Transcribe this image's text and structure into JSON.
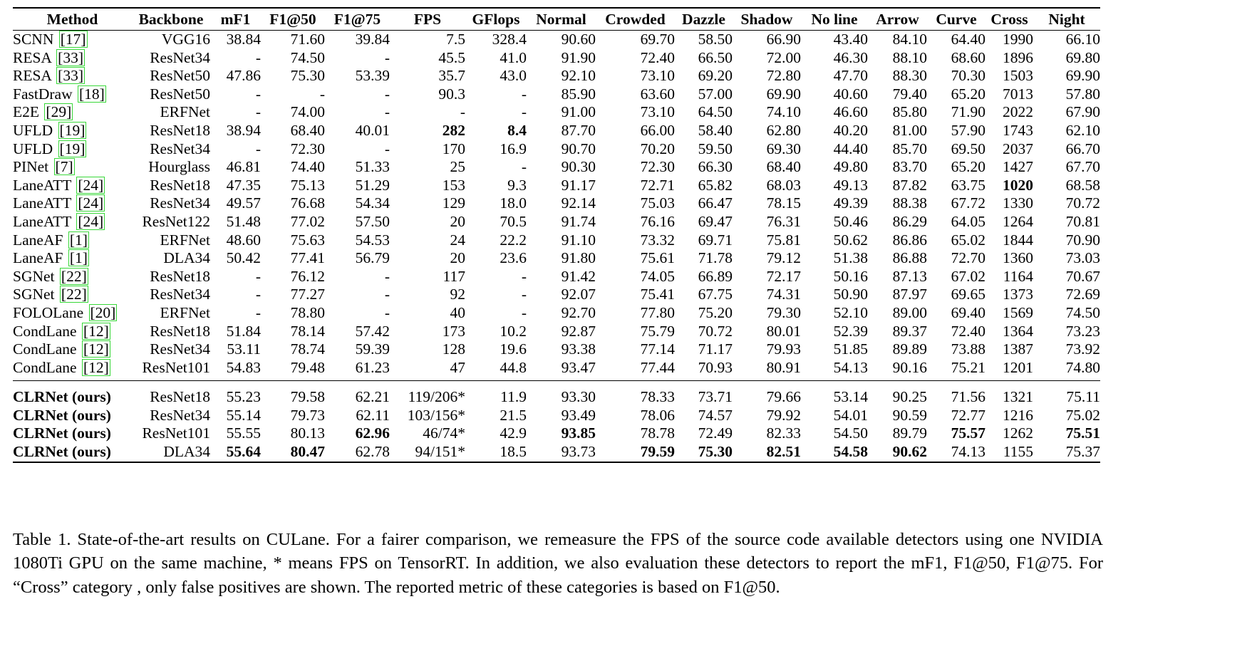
{
  "columns": [
    "Method",
    "Backbone",
    "mF1",
    "F1@50",
    "F1@75",
    "FPS",
    "GFlops",
    "Normal",
    "Crowded",
    "Dazzle",
    "Shadow",
    "No line",
    "Arrow",
    "Curve",
    "Cross",
    "Night"
  ],
  "baseline_rows": [
    {
      "method": "SCNN",
      "cite": "[17]",
      "cells": [
        "VGG16",
        "38.84",
        "71.60",
        "39.84",
        "7.5",
        "328.4",
        "90.60",
        "69.70",
        "58.50",
        "66.90",
        "43.40",
        "84.10",
        "64.40",
        "1990",
        "66.10"
      ],
      "bold": []
    },
    {
      "method": "RESA",
      "cite": "[33]",
      "cells": [
        "ResNet34",
        "-",
        "74.50",
        "-",
        "45.5",
        "41.0",
        "91.90",
        "72.40",
        "66.50",
        "72.00",
        "46.30",
        "88.10",
        "68.60",
        "1896",
        "69.80"
      ],
      "bold": []
    },
    {
      "method": "RESA",
      "cite": "[33]",
      "cells": [
        "ResNet50",
        "47.86",
        "75.30",
        "53.39",
        "35.7",
        "43.0",
        "92.10",
        "73.10",
        "69.20",
        "72.80",
        "47.70",
        "88.30",
        "70.30",
        "1503",
        "69.90"
      ],
      "bold": []
    },
    {
      "method": "FastDraw",
      "cite": "[18]",
      "cells": [
        "ResNet50",
        "-",
        "-",
        "-",
        "90.3",
        "-",
        "85.90",
        "63.60",
        "57.00",
        "69.90",
        "40.60",
        "79.40",
        "65.20",
        "7013",
        "57.80"
      ],
      "bold": []
    },
    {
      "method": "E2E",
      "cite": "[29]",
      "cells": [
        "ERFNet",
        "-",
        "74.00",
        "-",
        "-",
        "-",
        "91.00",
        "73.10",
        "64.50",
        "74.10",
        "46.60",
        "85.80",
        "71.90",
        "2022",
        "67.90"
      ],
      "bold": []
    },
    {
      "method": "UFLD",
      "cite": "[19]",
      "cells": [
        "ResNet18",
        "38.94",
        "68.40",
        "40.01",
        "282",
        "8.4",
        "87.70",
        "66.00",
        "58.40",
        "62.80",
        "40.20",
        "81.00",
        "57.90",
        "1743",
        "62.10"
      ],
      "bold": [
        4,
        5
      ]
    },
    {
      "method": "UFLD",
      "cite": "[19]",
      "cells": [
        "ResNet34",
        "-",
        "72.30",
        "-",
        "170",
        "16.9",
        "90.70",
        "70.20",
        "59.50",
        "69.30",
        "44.40",
        "85.70",
        "69.50",
        "2037",
        "66.70"
      ],
      "bold": []
    },
    {
      "method": "PINet",
      "cite": "[7]",
      "cells": [
        "Hourglass",
        "46.81",
        "74.40",
        "51.33",
        "25",
        "-",
        "90.30",
        "72.30",
        "66.30",
        "68.40",
        "49.80",
        "83.70",
        "65.20",
        "1427",
        "67.70"
      ],
      "bold": []
    },
    {
      "method": "LaneATT",
      "cite": "[24]",
      "cells": [
        "ResNet18",
        "47.35",
        "75.13",
        "51.29",
        "153",
        "9.3",
        "91.17",
        "72.71",
        "65.82",
        "68.03",
        "49.13",
        "87.82",
        "63.75",
        "1020",
        "68.58"
      ],
      "bold": [
        13
      ]
    },
    {
      "method": "LaneATT",
      "cite": "[24]",
      "cells": [
        "ResNet34",
        "49.57",
        "76.68",
        "54.34",
        "129",
        "18.0",
        "92.14",
        "75.03",
        "66.47",
        "78.15",
        "49.39",
        "88.38",
        "67.72",
        "1330",
        "70.72"
      ],
      "bold": []
    },
    {
      "method": "LaneATT",
      "cite": "[24]",
      "cells": [
        "ResNet122",
        "51.48",
        "77.02",
        "57.50",
        "20",
        "70.5",
        "91.74",
        "76.16",
        "69.47",
        "76.31",
        "50.46",
        "86.29",
        "64.05",
        "1264",
        "70.81"
      ],
      "bold": []
    },
    {
      "method": "LaneAF",
      "cite": "[1]",
      "cells": [
        "ERFNet",
        "48.60",
        "75.63",
        "54.53",
        "24",
        "22.2",
        "91.10",
        "73.32",
        "69.71",
        "75.81",
        "50.62",
        "86.86",
        "65.02",
        "1844",
        "70.90"
      ],
      "bold": []
    },
    {
      "method": "LaneAF",
      "cite": "[1]",
      "cells": [
        "DLA34",
        "50.42",
        "77.41",
        "56.79",
        "20",
        "23.6",
        "91.80",
        "75.61",
        "71.78",
        "79.12",
        "51.38",
        "86.88",
        "72.70",
        "1360",
        "73.03"
      ],
      "bold": []
    },
    {
      "method": "SGNet",
      "cite": "[22]",
      "cells": [
        "ResNet18",
        "-",
        "76.12",
        "-",
        "117",
        "-",
        "91.42",
        "74.05",
        "66.89",
        "72.17",
        "50.16",
        "87.13",
        "67.02",
        "1164",
        "70.67"
      ],
      "bold": []
    },
    {
      "method": "SGNet",
      "cite": "[22]",
      "cells": [
        "ResNet34",
        "-",
        "77.27",
        "-",
        "92",
        "-",
        "92.07",
        "75.41",
        "67.75",
        "74.31",
        "50.90",
        "87.97",
        "69.65",
        "1373",
        "72.69"
      ],
      "bold": []
    },
    {
      "method": "FOLOLane",
      "cite": "[20]",
      "cells": [
        "ERFNet",
        "-",
        "78.80",
        "-",
        "40",
        "-",
        "92.70",
        "77.80",
        "75.20",
        "79.30",
        "52.10",
        "89.00",
        "69.40",
        "1569",
        "74.50"
      ],
      "bold": []
    },
    {
      "method": "CondLane",
      "cite": "[12]",
      "cells": [
        "ResNet18",
        "51.84",
        "78.14",
        "57.42",
        "173",
        "10.2",
        "92.87",
        "75.79",
        "70.72",
        "80.01",
        "52.39",
        "89.37",
        "72.40",
        "1364",
        "73.23"
      ],
      "bold": []
    },
    {
      "method": "CondLane",
      "cite": "[12]",
      "cells": [
        "ResNet34",
        "53.11",
        "78.74",
        "59.39",
        "128",
        "19.6",
        "93.38",
        "77.14",
        "71.17",
        "79.93",
        "51.85",
        "89.89",
        "73.88",
        "1387",
        "73.92"
      ],
      "bold": []
    },
    {
      "method": "CondLane",
      "cite": "[12]",
      "cells": [
        "ResNet101",
        "54.83",
        "79.48",
        "61.23",
        "47",
        "44.8",
        "93.47",
        "77.44",
        "70.93",
        "80.91",
        "54.13",
        "90.16",
        "75.21",
        "1201",
        "74.80"
      ],
      "bold": []
    }
  ],
  "ours_rows": [
    {
      "method": "CLRNet (ours)",
      "cells": [
        "ResNet18",
        "55.23",
        "79.58",
        "62.21",
        "119/206*",
        "11.9",
        "93.30",
        "78.33",
        "73.71",
        "79.66",
        "53.14",
        "90.25",
        "71.56",
        "1321",
        "75.11"
      ],
      "bold": []
    },
    {
      "method": "CLRNet (ours)",
      "cells": [
        "ResNet34",
        "55.14",
        "79.73",
        "62.11",
        "103/156*",
        "21.5",
        "93.49",
        "78.06",
        "74.57",
        "79.92",
        "54.01",
        "90.59",
        "72.77",
        "1216",
        "75.02"
      ],
      "bold": []
    },
    {
      "method": "CLRNet (ours)",
      "cells": [
        "ResNet101",
        "55.55",
        "80.13",
        "62.96",
        "46/74*",
        "42.9",
        "93.85",
        "78.78",
        "72.49",
        "82.33",
        "54.50",
        "89.79",
        "75.57",
        "1262",
        "75.51"
      ],
      "bold": [
        3,
        6,
        12,
        14
      ]
    },
    {
      "method": "CLRNet (ours)",
      "cells": [
        "DLA34",
        "55.64",
        "80.47",
        "62.78",
        "94/151*",
        "18.5",
        "93.73",
        "79.59",
        "75.30",
        "82.51",
        "54.58",
        "90.62",
        "74.13",
        "1155",
        "75.37"
      ],
      "bold": [
        1,
        2,
        7,
        8,
        9,
        10,
        11
      ]
    }
  ],
  "caption": "Table 1. State-of-the-art results on CULane. For a fairer comparison, we remeasure the FPS of the source code available detectors using one NVIDIA 1080Ti GPU on the same machine, * means FPS on TensorRT. In addition, we also evaluation these detectors to report the mF1, F1@50, F1@75. For “Cross” category , only false positives are shown. The reported metric of these categories is based on F1@50."
}
